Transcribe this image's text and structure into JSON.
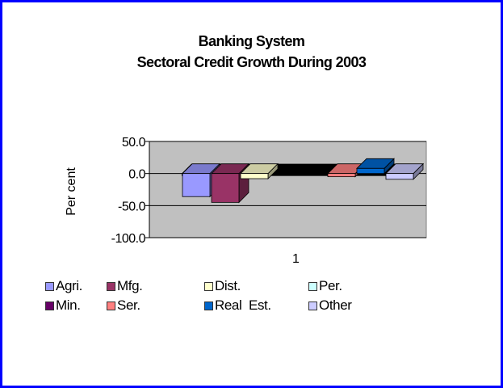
{
  "chart_data": {
    "type": "bar",
    "title": "Banking System",
    "subtitle": "Sectoral Credit Growth During 2003",
    "xlabel": "",
    "ylabel": "Per cent",
    "categories": [
      "1"
    ],
    "ylim": [
      -100.0,
      50.0
    ],
    "yticks": [
      "50.0",
      "0.0",
      "-50.0",
      "-100.0"
    ],
    "grid": true,
    "legend_position": "bottom",
    "series": [
      {
        "name": "Agri.",
        "values": [
          -36
        ],
        "color": "#9999ff"
      },
      {
        "name": "Mfg.",
        "values": [
          -45
        ],
        "color": "#993366"
      },
      {
        "name": "Dist.",
        "values": [
          -8
        ],
        "color": "#ffffcc"
      },
      {
        "name": "Per.",
        "values": [
          0
        ],
        "color": "#ccffff"
      },
      {
        "name": "Min.",
        "values": [
          0
        ],
        "color": "#660066"
      },
      {
        "name": "Ser.",
        "values": [
          -5
        ],
        "color": "#ff8080"
      },
      {
        "name": "Real  Est.",
        "values": [
          8
        ],
        "color": "#0066cc"
      },
      {
        "name": "Other",
        "values": [
          -9
        ],
        "color": "#ccccff"
      }
    ]
  },
  "colors": {
    "frame": "#0000ff",
    "plot_background": "#c0c0c0",
    "floor": "#000000"
  }
}
